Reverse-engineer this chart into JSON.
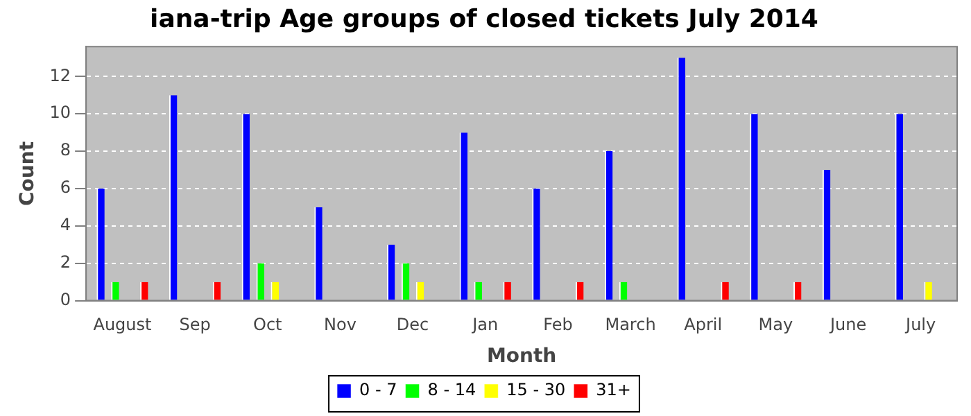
{
  "chart_data": {
    "type": "bar",
    "title": "iana-trip Age groups of closed tickets July 2014",
    "xlabel": "Month",
    "ylabel": "Count",
    "categories": [
      "August",
      "Sep",
      "Oct",
      "Nov",
      "Dec",
      "Jan",
      "Feb",
      "March",
      "April",
      "May",
      "June",
      "July"
    ],
    "series": [
      {
        "name": "0 - 7",
        "color": "#0000ff",
        "values": [
          6,
          11,
          10,
          5,
          3,
          9,
          6,
          8,
          13,
          10,
          7,
          10
        ]
      },
      {
        "name": "8 - 14",
        "color": "#00ff00",
        "values": [
          1,
          0,
          2,
          0,
          2,
          1,
          0,
          1,
          0,
          0,
          0,
          0
        ]
      },
      {
        "name": "15 - 30",
        "color": "#ffff00",
        "values": [
          0,
          0,
          1,
          0,
          1,
          0,
          0,
          0,
          0,
          0,
          0,
          1
        ]
      },
      {
        "name": "31+",
        "color": "#ff0000",
        "values": [
          1,
          1,
          0,
          0,
          0,
          1,
          1,
          0,
          1,
          1,
          0,
          0
        ]
      }
    ],
    "ylim": [
      0,
      13.6
    ],
    "yticks": [
      0,
      2,
      4,
      6,
      8,
      10,
      12
    ],
    "grid": "y",
    "legend": "bottom"
  }
}
